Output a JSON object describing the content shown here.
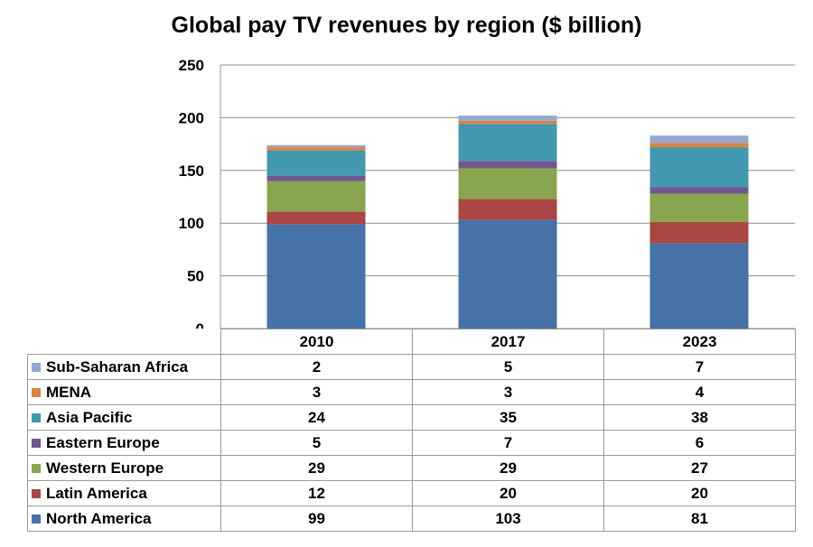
{
  "chart_data": {
    "type": "bar",
    "stacked": true,
    "title": "Global pay TV revenues by region ($ billion)",
    "xlabel": "",
    "ylabel": "",
    "ylim": [
      0,
      250
    ],
    "yticks": [
      0,
      50,
      100,
      150,
      200,
      250
    ],
    "grid": true,
    "categories": [
      "2010",
      "2017",
      "2023"
    ],
    "series": [
      {
        "name": "North America",
        "color": "#4572A7",
        "values": [
          99,
          103,
          81
        ]
      },
      {
        "name": "Latin America",
        "color": "#AA4643",
        "values": [
          12,
          20,
          20
        ]
      },
      {
        "name": "Western Europe",
        "color": "#89A54E",
        "values": [
          29,
          29,
          27
        ]
      },
      {
        "name": "Eastern Europe",
        "color": "#71588F",
        "values": [
          5,
          7,
          6
        ]
      },
      {
        "name": "Asia Pacific",
        "color": "#4198AF",
        "values": [
          24,
          35,
          38
        ]
      },
      {
        "name": "MENA",
        "color": "#DB843D",
        "values": [
          3,
          3,
          4
        ]
      },
      {
        "name": "Sub-Saharan Africa",
        "color": "#93A9CF",
        "values": [
          2,
          5,
          7
        ]
      }
    ],
    "table_row_order": [
      "Sub-Saharan Africa",
      "MENA",
      "Asia Pacific",
      "Eastern Europe",
      "Western Europe",
      "Latin America",
      "North America"
    ]
  }
}
